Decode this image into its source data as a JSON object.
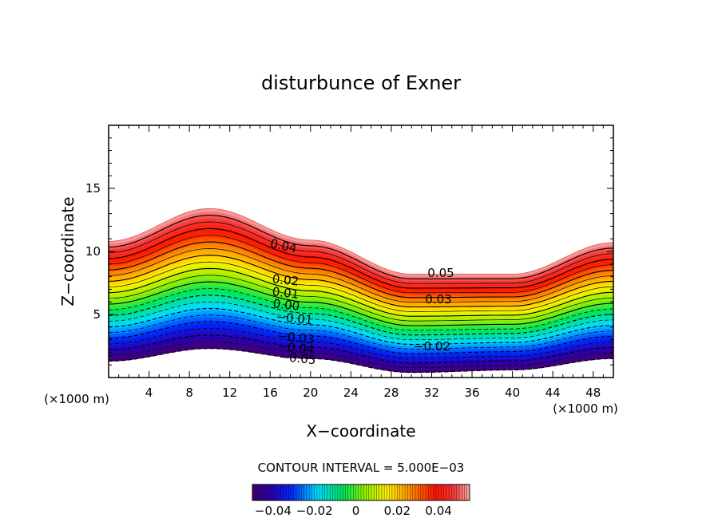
{
  "chart_data": {
    "type": "contour",
    "title": "disturbunce of Exner",
    "xlabel": "X−coordinate",
    "ylabel": "Z−coordinate",
    "x_unit": "(×1000 m)",
    "xlim": [
      0,
      50
    ],
    "ylim": [
      0,
      20
    ],
    "x_ticks": [
      "4",
      "8",
      "12",
      "16",
      "20",
      "24",
      "28",
      "32",
      "36",
      "40",
      "44",
      "48"
    ],
    "y_ticks": [
      "5",
      "10",
      "15"
    ],
    "terrain": {
      "x": [
        0,
        10,
        20,
        30,
        40,
        50
      ],
      "bottom": [
        1.3,
        2.3,
        1.5,
        0.4,
        0.6,
        1.5
      ],
      "top": [
        10.8,
        13.4,
        10.9,
        8.2,
        8.2,
        10.7
      ]
    },
    "value_range": [
      -0.05,
      0.055
    ],
    "contour_interval_label": "CONTOUR INTERVAL = 5.000E−03",
    "contour_labels": [
      "0.05",
      "0.04",
      "0.03",
      "0.02",
      "0.01",
      "0.00",
      "−0.01",
      "−0.02",
      "−0.03",
      "−0.04",
      "−0.05"
    ],
    "colorbar": {
      "tick_labels": [
        "−0.04",
        "−0.02",
        "0",
        "0.02",
        "0.04"
      ],
      "range": [
        -0.05,
        0.055
      ]
    },
    "negative_contours": "dashed",
    "grid": false
  }
}
